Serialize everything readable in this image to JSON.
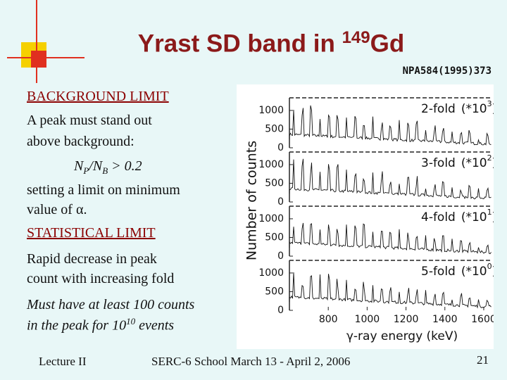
{
  "header": {
    "title_before": "Yrast SD band in ",
    "title_superscript": "149",
    "title_after": "Gd",
    "reference": "NPA584(1995)373"
  },
  "body": {
    "background_heading": "BACKGROUND  LIMIT",
    "lines": [
      "A peak  must stand out",
      "above background:",
      "setting a limit on minimum",
      "value of α.",
      "Rapid decrease in peak",
      "count with increasing fold",
      "Must have at least 100 counts"
    ],
    "formula": [
      "N",
      "P",
      "/N",
      "B",
      " > 0.2"
    ],
    "statistical_heading": "STATISTICAL  LIMIT",
    "last_line": [
      "in the peak for  ",
      "10",
      "10",
      " events"
    ]
  },
  "figure": {
    "y_label": "Number of counts",
    "x_label": "γ-ray energy (keV)",
    "yticks": [
      0,
      500,
      1000
    ],
    "ylim": [
      0,
      1300
    ],
    "xticks": [
      800,
      1000,
      1200,
      1400,
      1600
    ],
    "xlim": [
      600,
      1640
    ],
    "panels": [
      {
        "label": "2-fold",
        "factor": "(*10",
        "exponent": "3",
        "close": ")"
      },
      {
        "label": "3-fold",
        "factor": "(*10",
        "exponent": "2",
        "close": ")"
      },
      {
        "label": "4-fold",
        "factor": "(*10",
        "exponent": "1",
        "close": ")"
      },
      {
        "label": "5-fold",
        "factor": "(*10",
        "exponent": "0",
        "close": ")"
      }
    ]
  },
  "footer": {
    "left": "Lecture II",
    "center": "SERC-6 School March 13 - April 2, 2006",
    "page": "21"
  }
}
